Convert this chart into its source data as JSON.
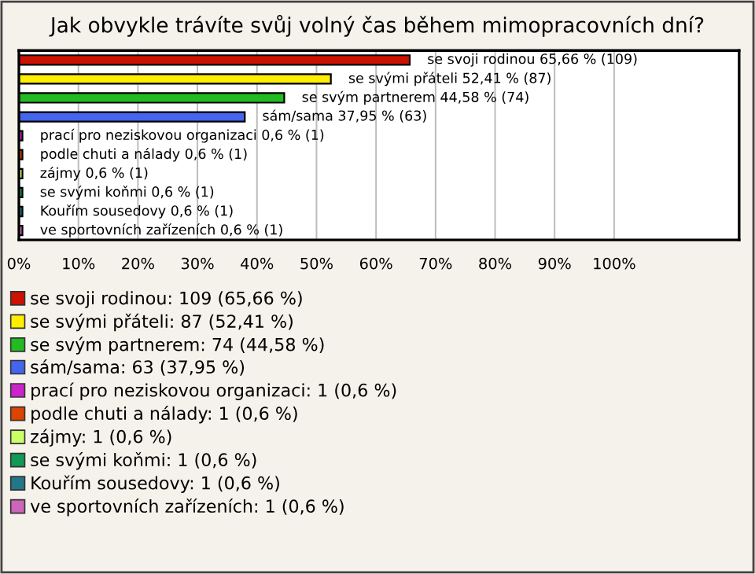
{
  "chart_data": {
    "type": "bar",
    "orientation": "horizontal",
    "title": "Jak obvykle trávíte svůj volný čas během mimopracovních dní?",
    "categories": [
      null,
      null,
      null,
      null,
      null,
      null,
      null,
      null,
      null,
      null
    ],
    "series": [
      {
        "name": "se svoji rodinou: 109 (65,66 %)",
        "color": "#cc1100",
        "values": [
          65.66,
          null,
          null,
          null,
          null,
          null,
          null,
          null,
          null,
          null
        ],
        "value_labels": [
          "se svoji rodinou 65,66 % (109)",
          null,
          null,
          null,
          null,
          null,
          null,
          null,
          null,
          null
        ]
      },
      {
        "name": "se svými přáteli: 87 (52,41 %)",
        "color": "#ffee00",
        "values": [
          null,
          52.41,
          null,
          null,
          null,
          null,
          null,
          null,
          null,
          null
        ],
        "value_labels": [
          null,
          "se svými přáteli 52,41 % (87)",
          null,
          null,
          null,
          null,
          null,
          null,
          null,
          null
        ]
      },
      {
        "name": "se svým partnerem: 74 (44,58 %)",
        "color": "#22bb22",
        "values": [
          null,
          null,
          44.58,
          null,
          null,
          null,
          null,
          null,
          null,
          null
        ],
        "value_labels": [
          null,
          null,
          "se svým partnerem 44,58 % (74)",
          null,
          null,
          null,
          null,
          null,
          null,
          null
        ]
      },
      {
        "name": "sám/sama: 63 (37,95 %)",
        "color": "#4466ee",
        "values": [
          null,
          null,
          null,
          37.95,
          null,
          null,
          null,
          null,
          null,
          null
        ],
        "value_labels": [
          null,
          null,
          null,
          "sám/sama 37,95 % (63)",
          null,
          null,
          null,
          null,
          null,
          null
        ]
      },
      {
        "name": "prací pro neziskovou organizaci: 1 (0,6 %)",
        "color": "#cc22cc",
        "values": [
          null,
          null,
          null,
          null,
          0.6,
          null,
          null,
          null,
          null,
          null
        ],
        "value_labels": [
          null,
          null,
          null,
          null,
          "prací pro neziskovou organizaci 0,6 % (1)",
          null,
          null,
          null,
          null,
          null
        ]
      },
      {
        "name": "podle chuti a nálady: 1 (0,6 %)",
        "color": "#dd4400",
        "values": [
          null,
          null,
          null,
          null,
          null,
          0.6,
          null,
          null,
          null,
          null
        ],
        "value_labels": [
          null,
          null,
          null,
          null,
          null,
          "podle chuti a nálady 0,6 % (1)",
          null,
          null,
          null,
          null
        ]
      },
      {
        "name": "zájmy: 1 (0,6 %)",
        "color": "#ccff66",
        "values": [
          null,
          null,
          null,
          null,
          null,
          null,
          0.6,
          null,
          null,
          null
        ],
        "value_labels": [
          null,
          null,
          null,
          null,
          null,
          null,
          "zájmy 0,6 % (1)",
          null,
          null,
          null
        ]
      },
      {
        "name": "se svými koňmi: 1 (0,6 %)",
        "color": "#119955",
        "values": [
          null,
          null,
          null,
          null,
          null,
          null,
          null,
          0.6,
          null,
          null
        ],
        "value_labels": [
          null,
          null,
          null,
          null,
          null,
          null,
          null,
          "se svými koňmi 0,6 % (1)",
          null,
          null
        ]
      },
      {
        "name": "Kouřím sousedovy: 1 (0,6 %)",
        "color": "#227788",
        "values": [
          null,
          null,
          null,
          null,
          null,
          null,
          null,
          null,
          0.6,
          null
        ],
        "value_labels": [
          null,
          null,
          null,
          null,
          null,
          null,
          null,
          null,
          "Kouřím sousedovy 0,6 % (1)",
          null
        ]
      },
      {
        "name": "ve sportovních zařízeních: 1 (0,6 %)",
        "color": "#cc66bb",
        "values": [
          null,
          null,
          null,
          null,
          null,
          null,
          null,
          null,
          null,
          0.6
        ],
        "value_labels": [
          null,
          null,
          null,
          null,
          null,
          null,
          null,
          null,
          null,
          "ve sportovních zařízeních 0,6 % (1)"
        ]
      }
    ],
    "xlim": [
      0,
      121
    ],
    "xticks": [
      {
        "value": 0,
        "label": "0%"
      },
      {
        "value": 10,
        "label": "10%"
      },
      {
        "value": 20,
        "label": "20%"
      },
      {
        "value": 30,
        "label": "30%"
      },
      {
        "value": 40,
        "label": "40%"
      },
      {
        "value": 50,
        "label": "50%"
      },
      {
        "value": 60,
        "label": "60%"
      },
      {
        "value": 70,
        "label": "70%"
      },
      {
        "value": 80,
        "label": "80%"
      },
      {
        "value": 90,
        "label": "90%"
      },
      {
        "value": 100,
        "label": "100%"
      }
    ],
    "grid": "x",
    "legend": "bottom",
    "tick_labels": "x"
  }
}
